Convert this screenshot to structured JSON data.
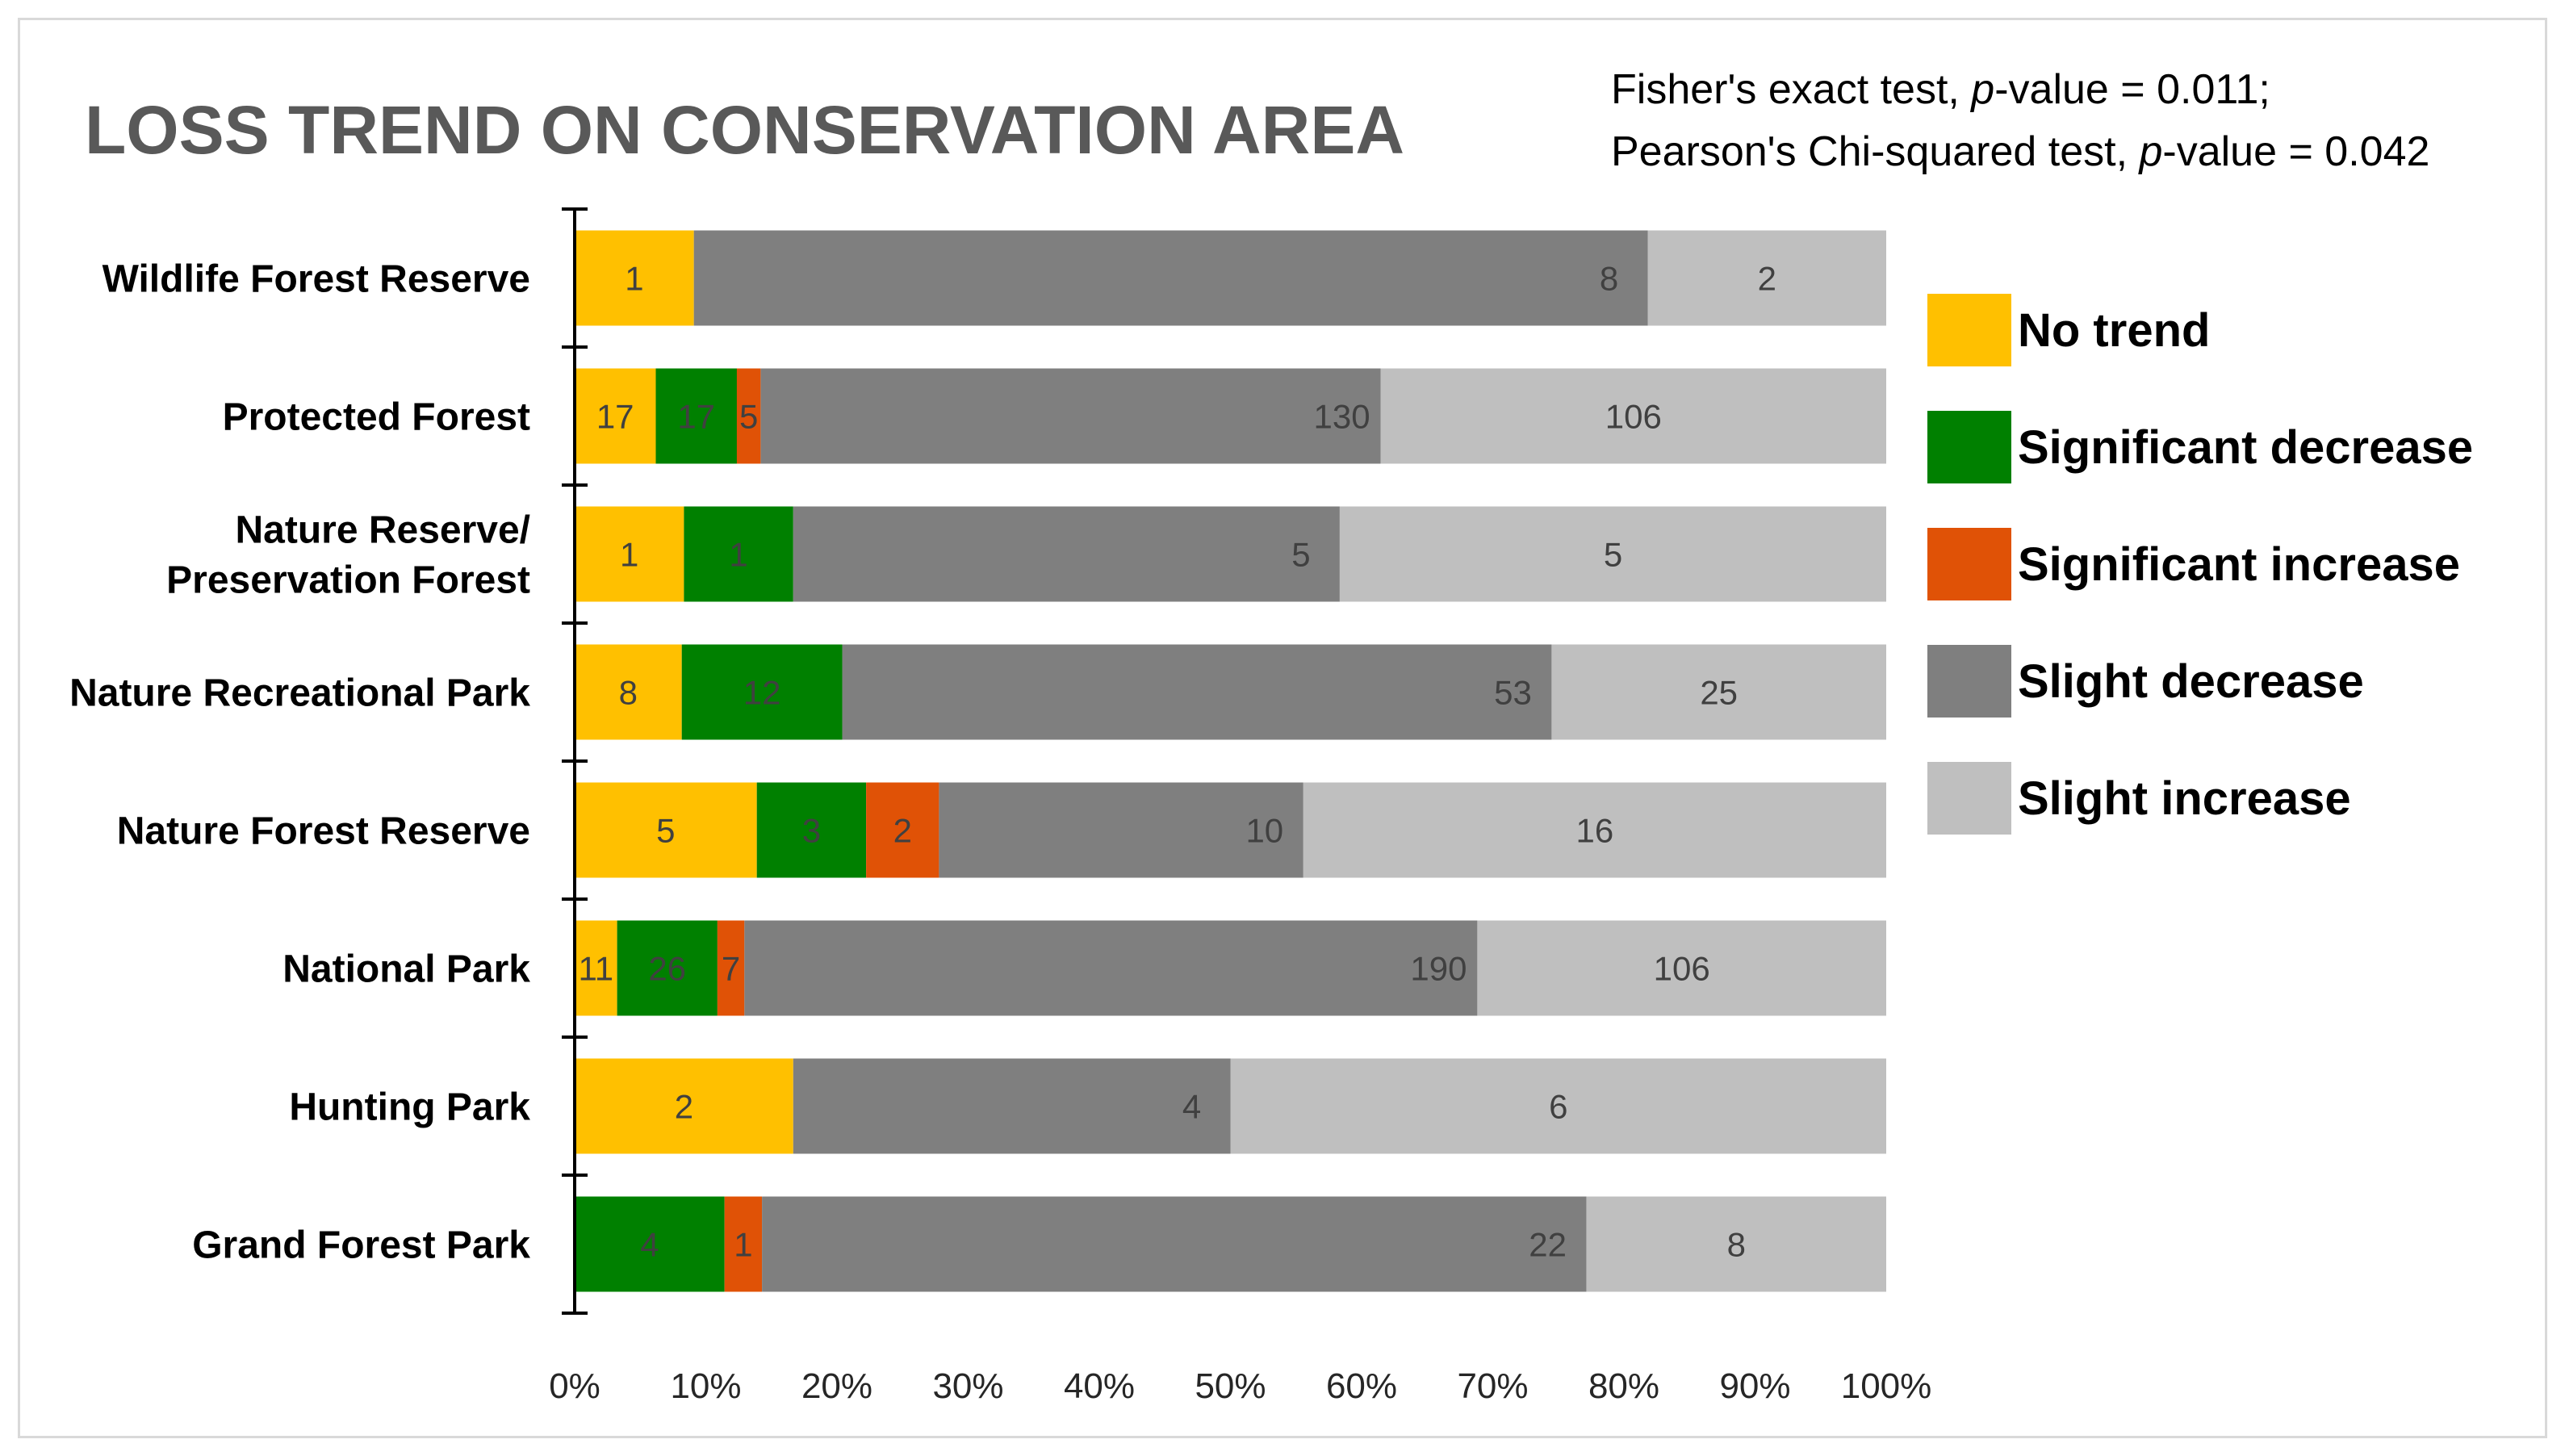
{
  "chart_data": {
    "type": "bar",
    "orientation": "horizontal",
    "stacked": "percent",
    "title": "LOSS TREND ON CONSERVATION AREA",
    "annotation": {
      "line1_prefix": "Fisher's exact test, ",
      "line1_p": "p",
      "line1_suffix": "-value = 0.011;",
      "line2_prefix": "Pearson's Chi-squared test, ",
      "line2_p": "p",
      "line2_suffix": "-value = 0.042"
    },
    "categories": [
      "Wildlife Forest Reserve",
      "Protected Forest",
      "Nature Reserve/ Preservation Forest",
      "Nature Recreational Park",
      "Nature Forest Reserve",
      "National Park",
      "Hunting Park",
      "Grand Forest Park"
    ],
    "category_lines": [
      [
        "Wildlife Forest Reserve"
      ],
      [
        "Protected Forest"
      ],
      [
        "Nature Reserve/",
        "Preservation Forest"
      ],
      [
        "Nature Recreational Park"
      ],
      [
        "Nature Forest Reserve"
      ],
      [
        "National Park"
      ],
      [
        "Hunting Park"
      ],
      [
        "Grand Forest Park"
      ]
    ],
    "series": [
      {
        "name": "No trend",
        "color": "#ffc000",
        "values": [
          1,
          17,
          1,
          8,
          5,
          11,
          2,
          0
        ]
      },
      {
        "name": "Significant decrease",
        "color": "#008000",
        "values": [
          0,
          17,
          1,
          12,
          3,
          26,
          0,
          4
        ]
      },
      {
        "name": "Significant increase",
        "color": "#e05206",
        "values": [
          0,
          5,
          0,
          0,
          2,
          7,
          0,
          1
        ]
      },
      {
        "name": "Slight decrease",
        "color": "#7f7f7f",
        "values": [
          8,
          130,
          5,
          53,
          10,
          190,
          4,
          22
        ]
      },
      {
        "name": "Slight increase",
        "color": "#bfbfbf",
        "values": [
          2,
          106,
          5,
          25,
          16,
          106,
          6,
          8
        ]
      }
    ],
    "xlim": [
      0,
      100
    ],
    "xticks": [
      "0%",
      "10%",
      "20%",
      "30%",
      "40%",
      "50%",
      "60%",
      "70%",
      "80%",
      "90%",
      "100%"
    ],
    "legend_position": "right",
    "grid": false
  }
}
